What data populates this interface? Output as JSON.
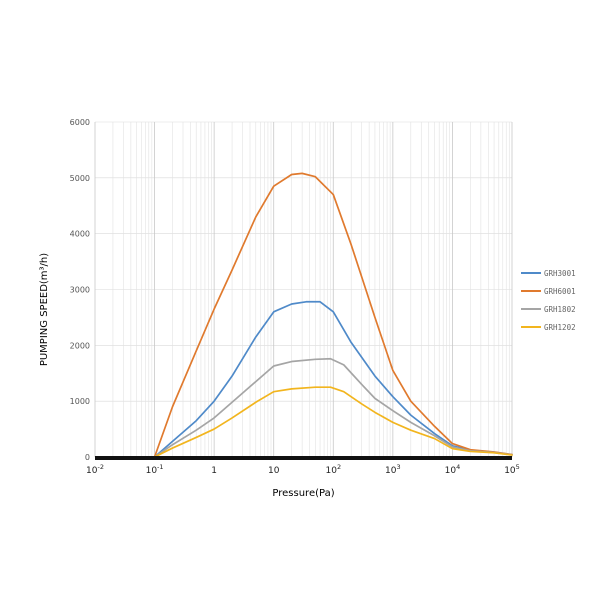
{
  "chart_data": {
    "type": "line",
    "xlabel": "Pressure(Pa)",
    "ylabel": "PUMPING SPEED(m³/h)",
    "x_scale": "log",
    "xlim": [
      0.01,
      100000
    ],
    "ylim": [
      0,
      6000
    ],
    "yticks": [
      0,
      1000,
      2000,
      3000,
      4000,
      5000,
      6000
    ],
    "xticks": [
      {
        "value": 0.01,
        "base": "10",
        "sup": "-2"
      },
      {
        "value": 0.1,
        "base": "10",
        "sup": "-1"
      },
      {
        "value": 1,
        "base": "1",
        "sup": ""
      },
      {
        "value": 10,
        "base": "10",
        "sup": ""
      },
      {
        "value": 100,
        "base": "10",
        "sup": "2"
      },
      {
        "value": 1000,
        "base": "10",
        "sup": "3"
      },
      {
        "value": 10000,
        "base": "10",
        "sup": "4"
      },
      {
        "value": 100000,
        "base": "10",
        "sup": "5"
      }
    ],
    "grid": true,
    "legend": "right",
    "series": [
      {
        "name": "GRH3001",
        "color": "#4f8ac9",
        "points": [
          [
            0.1,
            0
          ],
          [
            0.2,
            280
          ],
          [
            0.5,
            650
          ],
          [
            1,
            1000
          ],
          [
            2,
            1450
          ],
          [
            5,
            2150
          ],
          [
            10,
            2600
          ],
          [
            20,
            2740
          ],
          [
            35,
            2780
          ],
          [
            60,
            2780
          ],
          [
            100,
            2600
          ],
          [
            200,
            2050
          ],
          [
            500,
            1450
          ],
          [
            1000,
            1080
          ],
          [
            2000,
            750
          ],
          [
            5000,
            420
          ],
          [
            10000,
            200
          ],
          [
            20000,
            120
          ],
          [
            50000,
            85
          ],
          [
            100000,
            40
          ]
        ]
      },
      {
        "name": "GRH6001",
        "color": "#e07a2e",
        "points": [
          [
            0.1,
            0
          ],
          [
            0.2,
            900
          ],
          [
            0.5,
            1900
          ],
          [
            1,
            2650
          ],
          [
            2,
            3350
          ],
          [
            5,
            4300
          ],
          [
            10,
            4850
          ],
          [
            20,
            5060
          ],
          [
            30,
            5080
          ],
          [
            50,
            5020
          ],
          [
            100,
            4700
          ],
          [
            200,
            3800
          ],
          [
            500,
            2500
          ],
          [
            1000,
            1550
          ],
          [
            2000,
            1000
          ],
          [
            5000,
            550
          ],
          [
            10000,
            240
          ],
          [
            20000,
            130
          ],
          [
            50000,
            90
          ],
          [
            100000,
            45
          ]
        ]
      },
      {
        "name": "GRH1802",
        "color": "#a5a5a5",
        "points": [
          [
            0.1,
            0
          ],
          [
            0.2,
            220
          ],
          [
            0.5,
            480
          ],
          [
            1,
            700
          ],
          [
            2,
            980
          ],
          [
            5,
            1350
          ],
          [
            10,
            1630
          ],
          [
            20,
            1710
          ],
          [
            50,
            1750
          ],
          [
            90,
            1760
          ],
          [
            150,
            1650
          ],
          [
            300,
            1300
          ],
          [
            500,
            1050
          ],
          [
            1000,
            830
          ],
          [
            2000,
            620
          ],
          [
            5000,
            380
          ],
          [
            10000,
            180
          ],
          [
            20000,
            110
          ],
          [
            50000,
            80
          ],
          [
            100000,
            40
          ]
        ]
      },
      {
        "name": "GRH1202",
        "color": "#f2b51e",
        "points": [
          [
            0.1,
            0
          ],
          [
            0.2,
            160
          ],
          [
            0.5,
            350
          ],
          [
            1,
            500
          ],
          [
            2,
            700
          ],
          [
            5,
            980
          ],
          [
            10,
            1170
          ],
          [
            20,
            1220
          ],
          [
            50,
            1250
          ],
          [
            90,
            1250
          ],
          [
            150,
            1170
          ],
          [
            300,
            950
          ],
          [
            500,
            800
          ],
          [
            1000,
            620
          ],
          [
            2000,
            480
          ],
          [
            5000,
            330
          ],
          [
            10000,
            150
          ],
          [
            20000,
            100
          ],
          [
            50000,
            75
          ],
          [
            100000,
            35
          ]
        ]
      }
    ]
  }
}
